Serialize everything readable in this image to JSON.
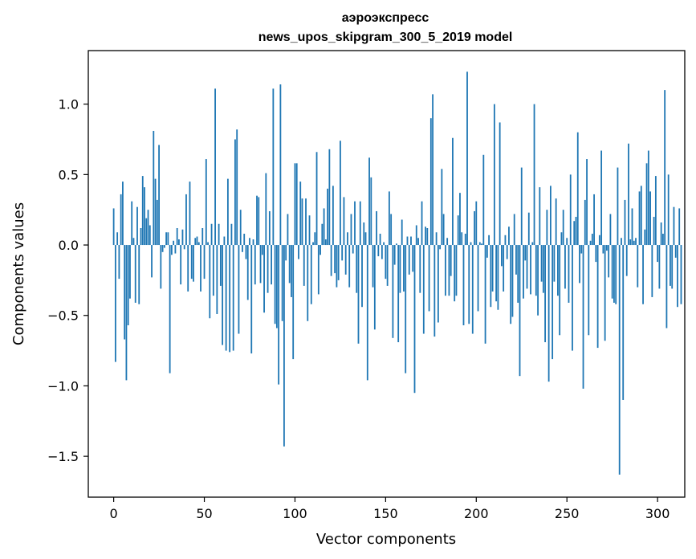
{
  "chart_data": {
    "type": "bar",
    "title": "аэроэкспресс",
    "subtitle": "news_upos_skipgram_300_5_2019 model",
    "xlabel": "Vector components",
    "ylabel": "Components values",
    "xlim": [
      -14,
      315
    ],
    "ylim": [
      -1.79,
      1.38
    ],
    "xticks": [
      0,
      50,
      100,
      150,
      200,
      250,
      300
    ],
    "yticks": [
      -1.5,
      -1.0,
      -0.5,
      0.0,
      0.5,
      1.0
    ],
    "ytick_labels": [
      "−1.5",
      "−1.0",
      "−0.5",
      "0.0",
      "0.5",
      "1.0"
    ],
    "grid": false,
    "bar_color": "#1f77b4",
    "x_start": 0,
    "values": [
      0.26,
      -0.83,
      0.09,
      -0.24,
      0.36,
      0.45,
      -0.67,
      -0.96,
      -0.57,
      -0.38,
      0.31,
      0.05,
      -0.41,
      0.27,
      -0.42,
      0.12,
      0.49,
      0.41,
      0.19,
      0.25,
      0.14,
      -0.23,
      0.81,
      0.47,
      0.32,
      0.71,
      -0.31,
      -0.05,
      -0.02,
      0.09,
      0.09,
      -0.91,
      -0.07,
      0.03,
      -0.06,
      0.12,
      0.04,
      -0.28,
      0.11,
      -0.03,
      0.36,
      -0.33,
      0.45,
      -0.24,
      -0.26,
      0.05,
      0.06,
      0.02,
      -0.33,
      0.12,
      -0.24,
      0.61,
      0.02,
      -0.52,
      0.15,
      -0.36,
      1.11,
      -0.49,
      0.15,
      -0.29,
      -0.71,
      0.06,
      -0.75,
      0.47,
      -0.76,
      0.15,
      -0.75,
      0.75,
      0.82,
      -0.63,
      0.25,
      -0.05,
      0.08,
      -0.1,
      -0.39,
      0.05,
      -0.77,
      0.04,
      -0.28,
      0.35,
      0.34,
      -0.27,
      -0.07,
      -0.48,
      0.51,
      -0.34,
      0.24,
      -0.28,
      1.11,
      -0.56,
      -0.59,
      -0.99,
      1.14,
      -0.54,
      -1.43,
      -0.11,
      0.22,
      -0.27,
      -0.37,
      -0.81,
      0.58,
      0.58,
      -0.1,
      0.45,
      0.33,
      -0.29,
      0.33,
      -0.54,
      0.21,
      -0.42,
      0.02,
      0.09,
      0.66,
      -0.35,
      -0.07,
      0.15,
      0.26,
      0.04,
      0.4,
      0.68,
      -0.22,
      0.42,
      -0.2,
      -0.3,
      -0.25,
      0.74,
      -0.11,
      0.34,
      -0.21,
      0.09,
      -0.3,
      0.22,
      -0.06,
      0.31,
      -0.34,
      -0.7,
      0.31,
      -0.44,
      0.16,
      0.09,
      -0.96,
      0.62,
      0.48,
      -0.3,
      -0.6,
      0.24,
      -0.08,
      0.08,
      -0.1,
      0.02,
      -0.24,
      -0.29,
      0.38,
      0.22,
      -0.66,
      -0.14,
      0.01,
      -0.69,
      -0.34,
      0.18,
      -0.33,
      -0.91,
      0.06,
      -0.21,
      0.06,
      -0.19,
      -1.05,
      0.14,
      0.05,
      -0.34,
      0.31,
      -0.63,
      0.13,
      0.12,
      -0.47,
      0.9,
      1.07,
      -0.65,
      0.09,
      -0.55,
      -0.03,
      0.54,
      0.22,
      -0.36,
      0.05,
      -0.36,
      -0.22,
      0.76,
      -0.4,
      -0.36,
      0.21,
      0.37,
      0.09,
      -0.57,
      0.08,
      1.23,
      -0.56,
      0.02,
      -0.63,
      0.24,
      0.31,
      -0.47,
      0.02,
      0.01,
      0.64,
      -0.7,
      -0.09,
      0.07,
      -0.44,
      -0.33,
      1.0,
      -0.4,
      -0.46,
      0.87,
      -0.15,
      -0.33,
      0.07,
      -0.1,
      0.13,
      -0.56,
      -0.51,
      0.22,
      -0.21,
      -0.41,
      -0.93,
      0.55,
      -0.38,
      -0.11,
      -0.31,
      0.23,
      -0.35,
      0.02,
      1.0,
      -0.36,
      -0.5,
      0.41,
      -0.26,
      -0.34,
      -0.69,
      0.25,
      -0.97,
      0.42,
      -0.81,
      -0.26,
      0.33,
      -0.36,
      -0.64,
      0.09,
      0.25,
      -0.31,
      0.05,
      -0.41,
      0.5,
      -0.75,
      0.17,
      0.2,
      0.8,
      -0.27,
      -0.06,
      -1.02,
      0.32,
      0.61,
      -0.64,
      0.03,
      0.08,
      0.36,
      -0.12,
      -0.73,
      0.07,
      0.67,
      -0.06,
      -0.68,
      -0.04,
      -0.23,
      0.22,
      -0.38,
      -0.41,
      -0.42,
      0.55,
      -1.63,
      0.05,
      -1.1,
      0.32,
      -0.22,
      0.72,
      0.04,
      0.26,
      0.03,
      0.05,
      -0.3,
      0.38,
      0.42,
      -0.42,
      0.11,
      0.58,
      0.67,
      0.38,
      -0.37,
      0.2,
      0.49,
      -0.12,
      -0.31,
      0.16,
      0.08,
      1.1,
      -0.59,
      0.5,
      -0.29,
      -0.31,
      0.27,
      -0.09,
      -0.44,
      0.26,
      -0.42
    ]
  }
}
